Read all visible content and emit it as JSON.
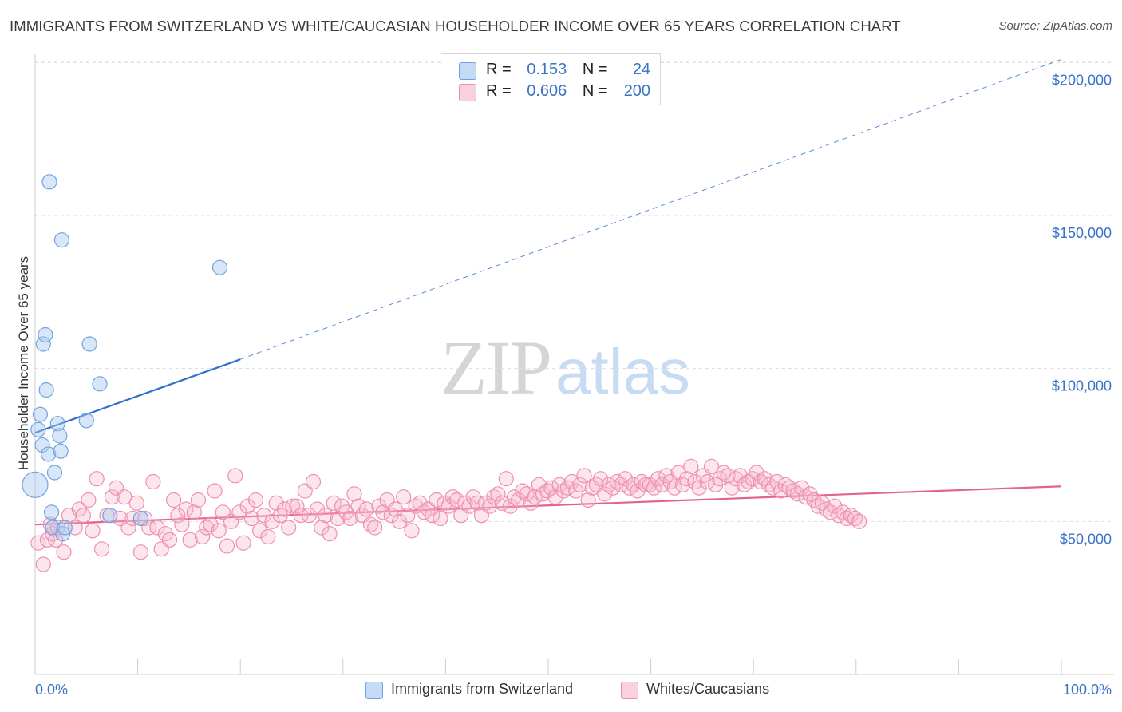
{
  "title": "IMMIGRANTS FROM SWITZERLAND VS WHITE/CAUCASIAN HOUSEHOLDER INCOME OVER 65 YEARS CORRELATION CHART",
  "source": "Source: ZipAtlas.com",
  "watermark": {
    "zip": "ZIP",
    "atlas": "atlas"
  },
  "legend_top": [
    {
      "r_label": "R =",
      "r_value": "0.153",
      "n_label": "N =",
      "n_value": "24",
      "color": "#a8c8ef"
    },
    {
      "r_label": "R =",
      "r_value": "0.606",
      "n_label": "N =",
      "n_value": "200",
      "color": "#f5b8cb"
    }
  ],
  "legend_bottom": [
    {
      "label": "Immigrants from Switzerland",
      "color": "#a8c8ef"
    },
    {
      "label": "Whites/Caucasians",
      "color": "#f5b8cb"
    }
  ],
  "colors": {
    "blue": "#6fa3e0",
    "blue_line": "#2f6fce",
    "pink": "#ef8fb0",
    "pink_line": "#e4628f",
    "grid": "#dddddd",
    "axis_text": "#3b74c7"
  },
  "chart_data": {
    "type": "scatter",
    "ylabel": "Householder Income Over 65 years",
    "xlim": [
      0,
      100
    ],
    "ylim": [
      0,
      210000
    ],
    "x_tick_labels": {
      "left": "0.0%",
      "right": "100.0%"
    },
    "y_ticks": [
      {
        "value": 50000,
        "label": "$50,000"
      },
      {
        "value": 100000,
        "label": "$100,000"
      },
      {
        "value": 150000,
        "label": "$150,000"
      },
      {
        "value": 200000,
        "label": "$200,000"
      }
    ],
    "grid": true,
    "series": [
      {
        "name": "Immigrants from Switzerland",
        "color": "#6fa3e0",
        "points": [
          [
            0.0,
            62000,
            16
          ],
          [
            0.3,
            80000,
            9
          ],
          [
            0.5,
            85000,
            9
          ],
          [
            0.7,
            75000,
            9
          ],
          [
            0.8,
            108000,
            9
          ],
          [
            1.0,
            111000,
            9
          ],
          [
            1.1,
            93000,
            9
          ],
          [
            1.3,
            72000,
            9
          ],
          [
            1.4,
            161000,
            9
          ],
          [
            1.6,
            53000,
            9
          ],
          [
            1.7,
            48000,
            9
          ],
          [
            1.9,
            66000,
            9
          ],
          [
            2.2,
            82000,
            9
          ],
          [
            2.4,
            78000,
            9
          ],
          [
            2.5,
            73000,
            9
          ],
          [
            2.6,
            142000,
            9
          ],
          [
            2.7,
            46000,
            9
          ],
          [
            2.9,
            48000,
            9
          ],
          [
            5.0,
            83000,
            9
          ],
          [
            5.3,
            108000,
            9
          ],
          [
            6.3,
            95000,
            9
          ],
          [
            7.3,
            52000,
            9
          ],
          [
            10.3,
            51000,
            9
          ],
          [
            18.0,
            133000,
            9
          ]
        ],
        "trend": {
          "x0": 0,
          "y0": 79000,
          "x1": 20,
          "y1": 103000,
          "dashed_to_x": 100,
          "dashed_to_y": 201000
        }
      },
      {
        "name": "Whites/Caucasians",
        "color": "#ef8fb0",
        "points": [
          [
            0.3,
            43000
          ],
          [
            0.8,
            36000
          ],
          [
            1.2,
            44000
          ],
          [
            1.5,
            49000
          ],
          [
            1.7,
            46000
          ],
          [
            2.0,
            44000
          ],
          [
            2.2,
            48000
          ],
          [
            2.8,
            40000
          ],
          [
            3.3,
            52000
          ],
          [
            3.9,
            48000
          ],
          [
            4.3,
            54000
          ],
          [
            4.7,
            52000
          ],
          [
            5.2,
            57000
          ],
          [
            5.6,
            47000
          ],
          [
            6.0,
            64000
          ],
          [
            6.5,
            41000
          ],
          [
            7.0,
            52000
          ],
          [
            7.5,
            58000
          ],
          [
            7.9,
            61000
          ],
          [
            8.3,
            51000
          ],
          [
            8.7,
            58000
          ],
          [
            9.1,
            48000
          ],
          [
            9.5,
            51000
          ],
          [
            9.9,
            56000
          ],
          [
            10.3,
            40000
          ],
          [
            10.7,
            51000
          ],
          [
            11.1,
            48000
          ],
          [
            11.5,
            63000
          ],
          [
            11.9,
            48000
          ],
          [
            12.3,
            41000
          ],
          [
            12.7,
            46000
          ],
          [
            13.1,
            44000
          ],
          [
            13.5,
            57000
          ],
          [
            13.9,
            52000
          ],
          [
            14.3,
            49000
          ],
          [
            14.7,
            54000
          ],
          [
            15.1,
            44000
          ],
          [
            15.5,
            53000
          ],
          [
            15.9,
            57000
          ],
          [
            16.3,
            45000
          ],
          [
            16.7,
            48000
          ],
          [
            17.1,
            49000
          ],
          [
            17.5,
            60000
          ],
          [
            17.9,
            47000
          ],
          [
            18.3,
            53000
          ],
          [
            18.7,
            42000
          ],
          [
            19.1,
            50000
          ],
          [
            19.5,
            65000
          ],
          [
            19.9,
            53000
          ],
          [
            20.3,
            43000
          ],
          [
            20.7,
            55000
          ],
          [
            21.1,
            51000
          ],
          [
            21.5,
            57000
          ],
          [
            21.9,
            47000
          ],
          [
            22.3,
            52000
          ],
          [
            22.7,
            45000
          ],
          [
            23.1,
            50000
          ],
          [
            23.5,
            56000
          ],
          [
            23.9,
            52000
          ],
          [
            24.3,
            54000
          ],
          [
            24.7,
            48000
          ],
          [
            25.1,
            55000
          ],
          [
            25.5,
            55000
          ],
          [
            25.9,
            52000
          ],
          [
            26.3,
            60000
          ],
          [
            26.7,
            52000
          ],
          [
            27.1,
            63000
          ],
          [
            27.5,
            54000
          ],
          [
            27.9,
            48000
          ],
          [
            28.3,
            52000
          ],
          [
            28.7,
            46000
          ],
          [
            29.1,
            56000
          ],
          [
            29.5,
            51000
          ],
          [
            29.9,
            55000
          ],
          [
            30.3,
            53000
          ],
          [
            30.7,
            51000
          ],
          [
            31.1,
            59000
          ],
          [
            31.5,
            55000
          ],
          [
            31.9,
            52000
          ],
          [
            32.3,
            54000
          ],
          [
            32.7,
            49000
          ],
          [
            33.1,
            48000
          ],
          [
            33.5,
            55000
          ],
          [
            33.9,
            53000
          ],
          [
            34.3,
            57000
          ],
          [
            34.7,
            52000
          ],
          [
            35.1,
            54000
          ],
          [
            35.5,
            50000
          ],
          [
            35.9,
            58000
          ],
          [
            36.3,
            52000
          ],
          [
            36.7,
            47000
          ],
          [
            37.1,
            55000
          ],
          [
            37.5,
            56000
          ],
          [
            37.9,
            53000
          ],
          [
            38.3,
            54000
          ],
          [
            38.7,
            52000
          ],
          [
            39.1,
            57000
          ],
          [
            39.5,
            51000
          ],
          [
            39.9,
            56000
          ],
          [
            40.3,
            55000
          ],
          [
            40.7,
            58000
          ],
          [
            41.1,
            57000
          ],
          [
            41.5,
            52000
          ],
          [
            41.9,
            56000
          ],
          [
            42.3,
            55000
          ],
          [
            42.7,
            58000
          ],
          [
            43.1,
            56000
          ],
          [
            43.5,
            52000
          ],
          [
            43.9,
            56000
          ],
          [
            44.3,
            55000
          ],
          [
            44.7,
            58000
          ],
          [
            45.1,
            59000
          ],
          [
            45.5,
            56000
          ],
          [
            45.9,
            64000
          ],
          [
            46.3,
            55000
          ],
          [
            46.7,
            58000
          ],
          [
            47.1,
            57000
          ],
          [
            47.5,
            60000
          ],
          [
            47.9,
            59000
          ],
          [
            48.3,
            56000
          ],
          [
            48.7,
            58000
          ],
          [
            49.1,
            62000
          ],
          [
            49.5,
            59000
          ],
          [
            49.9,
            60000
          ],
          [
            50.3,
            61000
          ],
          [
            50.7,
            58000
          ],
          [
            51.1,
            62000
          ],
          [
            51.5,
            60000
          ],
          [
            51.9,
            61000
          ],
          [
            52.3,
            63000
          ],
          [
            52.7,
            60000
          ],
          [
            53.1,
            62000
          ],
          [
            53.5,
            65000
          ],
          [
            53.9,
            57000
          ],
          [
            54.3,
            61000
          ],
          [
            54.7,
            62000
          ],
          [
            55.1,
            64000
          ],
          [
            55.5,
            59000
          ],
          [
            55.9,
            62000
          ],
          [
            56.3,
            61000
          ],
          [
            56.7,
            63000
          ],
          [
            57.1,
            62000
          ],
          [
            57.5,
            64000
          ],
          [
            57.9,
            61000
          ],
          [
            58.3,
            62000
          ],
          [
            58.7,
            60000
          ],
          [
            59.1,
            63000
          ],
          [
            59.5,
            62000
          ],
          [
            59.9,
            62000
          ],
          [
            60.3,
            61000
          ],
          [
            60.7,
            64000
          ],
          [
            61.1,
            62000
          ],
          [
            61.5,
            65000
          ],
          [
            61.9,
            63000
          ],
          [
            62.3,
            61000
          ],
          [
            62.7,
            66000
          ],
          [
            63.1,
            62000
          ],
          [
            63.5,
            64000
          ],
          [
            63.9,
            68000
          ],
          [
            64.3,
            63000
          ],
          [
            64.7,
            61000
          ],
          [
            65.1,
            65000
          ],
          [
            65.5,
            63000
          ],
          [
            65.9,
            68000
          ],
          [
            66.3,
            62000
          ],
          [
            66.7,
            64000
          ],
          [
            67.1,
            66000
          ],
          [
            67.5,
            65000
          ],
          [
            67.9,
            61000
          ],
          [
            68.3,
            64000
          ],
          [
            68.7,
            65000
          ],
          [
            69.1,
            62000
          ],
          [
            69.5,
            63000
          ],
          [
            69.9,
            64000
          ],
          [
            70.3,
            66000
          ],
          [
            70.7,
            63000
          ],
          [
            71.1,
            64000
          ],
          [
            71.5,
            62000
          ],
          [
            71.9,
            61000
          ],
          [
            72.3,
            63000
          ],
          [
            72.7,
            60000
          ],
          [
            73.1,
            62000
          ],
          [
            73.5,
            61000
          ],
          [
            73.9,
            60000
          ],
          [
            74.3,
            59000
          ],
          [
            74.7,
            61000
          ],
          [
            75.1,
            58000
          ],
          [
            75.5,
            59000
          ],
          [
            75.9,
            57000
          ],
          [
            76.3,
            55000
          ],
          [
            76.7,
            56000
          ],
          [
            77.1,
            54000
          ],
          [
            77.5,
            53000
          ],
          [
            77.9,
            55000
          ],
          [
            78.3,
            52000
          ],
          [
            78.7,
            53000
          ],
          [
            79.1,
            51000
          ],
          [
            79.5,
            52000
          ],
          [
            79.9,
            51000
          ],
          [
            80.3,
            50000
          ]
        ],
        "trend": {
          "x0": 0,
          "y0": 49000,
          "x1": 100,
          "y1": 61500
        }
      }
    ]
  }
}
